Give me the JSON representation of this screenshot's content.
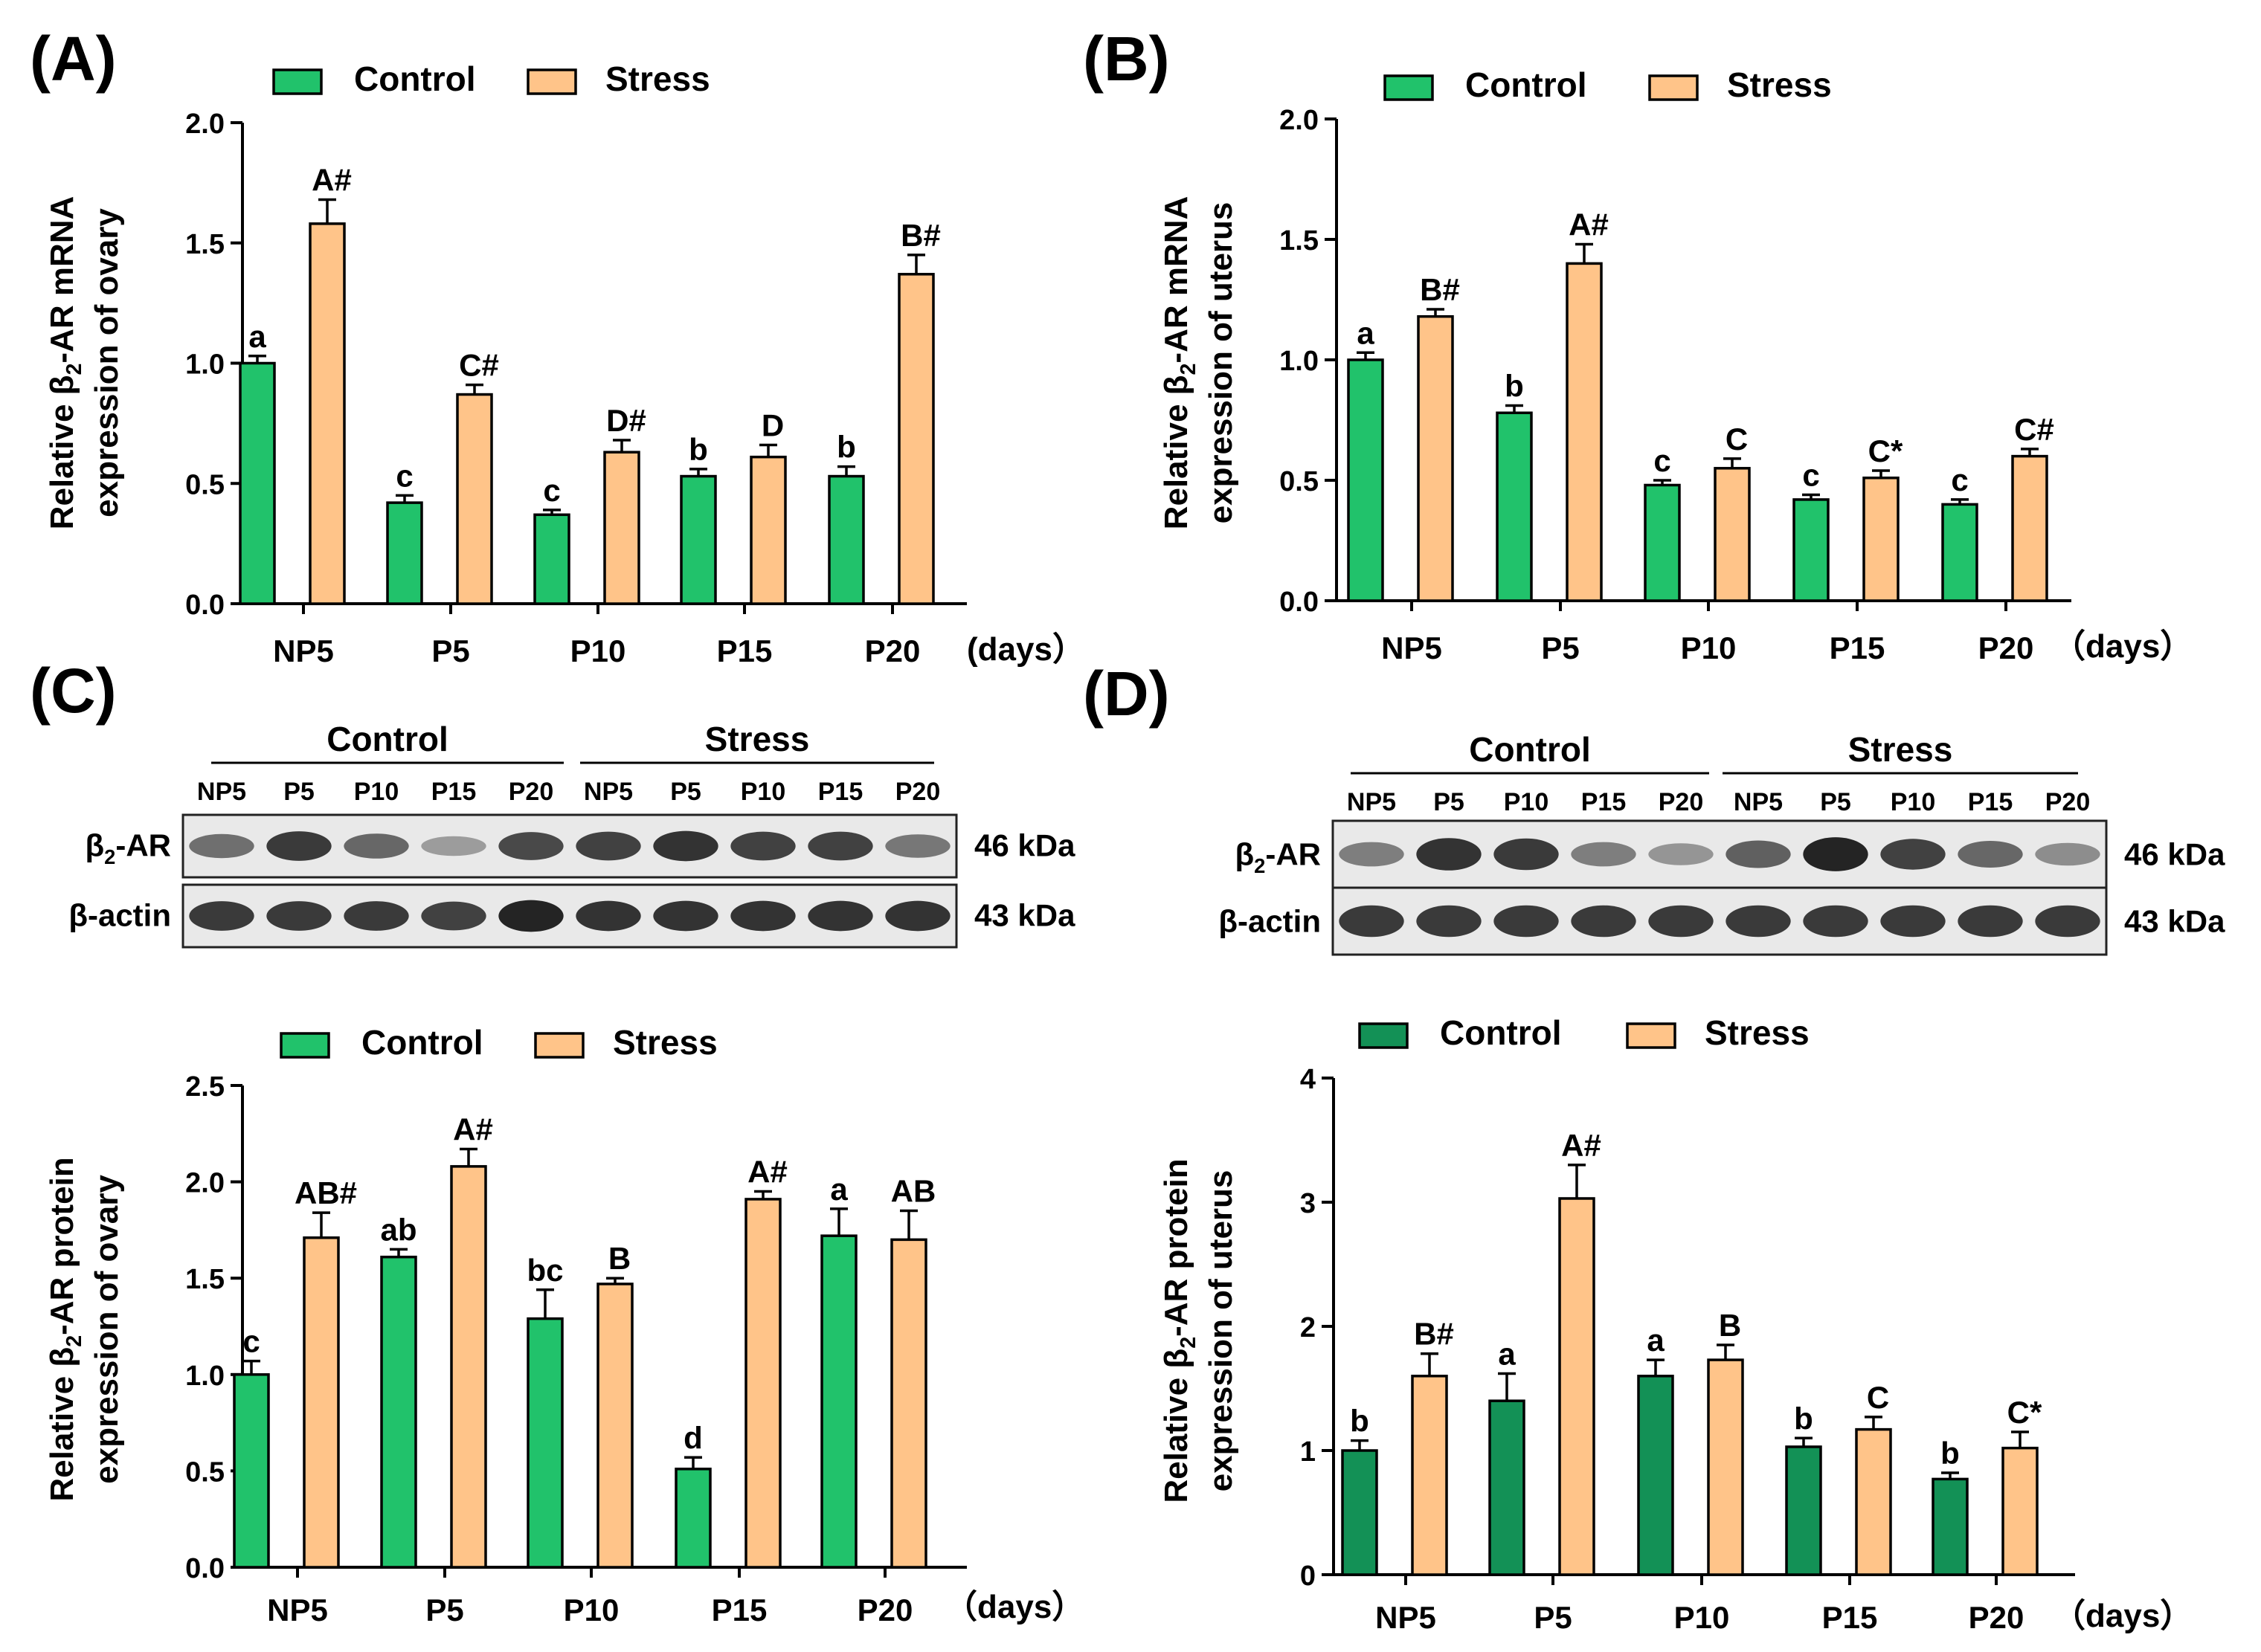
{
  "figure": {
    "panel_labels": [
      "(A)",
      "(B)",
      "(C)",
      "(D)"
    ],
    "days_label": "(days）",
    "days_label_b": "（days）",
    "days_label_c": "（days）",
    "days_label_d": "（days）"
  },
  "colors": {
    "control_a": "#21c26b",
    "control_d": "#139156",
    "stress": "#ffc489",
    "axis": "#000000"
  },
  "western_c": {
    "group_labels": [
      "Control",
      "Stress"
    ],
    "lanes": [
      "NP5",
      "P5",
      "P10",
      "P15",
      "P20",
      "NP5",
      "P5",
      "P10",
      "P15",
      "P20"
    ],
    "rows": [
      {
        "label": "β2-AR",
        "kda": "46 kDa"
      },
      {
        "label": "β-actin",
        "kda": "43 kDa"
      }
    ]
  },
  "western_d": {
    "group_labels": [
      "Control",
      "Stress"
    ],
    "lanes": [
      "NP5",
      "P5",
      "P10",
      "P15",
      "P20",
      "NP5",
      "P5",
      "P10",
      "P15",
      "P20"
    ],
    "rows": [
      {
        "label": "β2-AR",
        "kda": "46 kDa"
      },
      {
        "label": "β-actin",
        "kda": "43 kDa"
      }
    ]
  },
  "chart_data": [
    {
      "panel": "A",
      "type": "bar",
      "categories": [
        "NP5",
        "P5",
        "P10",
        "P15",
        "P20"
      ],
      "series": [
        {
          "name": "Control",
          "values": [
            1.0,
            0.42,
            0.37,
            0.53,
            0.53
          ],
          "errors": [
            0.03,
            0.03,
            0.02,
            0.03,
            0.04
          ],
          "labels": [
            "a",
            "c",
            "c",
            "b",
            "b"
          ]
        },
        {
          "name": "Stress",
          "values": [
            1.58,
            0.87,
            0.63,
            0.61,
            1.37
          ],
          "errors": [
            0.1,
            0.04,
            0.05,
            0.05,
            0.08
          ],
          "labels": [
            "A#",
            "C#",
            "D#",
            "D",
            "B#"
          ]
        }
      ],
      "ylabel": [
        "Relative β2-AR mRNA",
        "expression of ovary"
      ],
      "ylim": [
        0,
        2.0
      ],
      "yticks": [
        "0.0",
        "0.5",
        "1.0",
        "1.5",
        "2.0"
      ]
    },
    {
      "panel": "B",
      "type": "bar",
      "categories": [
        "NP5",
        "P5",
        "P10",
        "P15",
        "P20"
      ],
      "series": [
        {
          "name": "Control",
          "values": [
            1.0,
            0.78,
            0.48,
            0.42,
            0.4
          ],
          "errors": [
            0.03,
            0.03,
            0.02,
            0.02,
            0.02
          ],
          "labels": [
            "a",
            "b",
            "c",
            "c",
            "c"
          ]
        },
        {
          "name": "Stress",
          "values": [
            1.18,
            1.4,
            0.55,
            0.51,
            0.6
          ],
          "errors": [
            0.03,
            0.08,
            0.04,
            0.03,
            0.03
          ],
          "labels": [
            "B#",
            "A#",
            "C",
            "C*",
            "C#"
          ]
        }
      ],
      "ylabel": [
        "Relative β2-AR mRNA",
        "expression of uterus"
      ],
      "ylim": [
        0,
        2.0
      ],
      "yticks": [
        "0.0",
        "0.5",
        "1.0",
        "1.5",
        "2.0"
      ]
    },
    {
      "panel": "C",
      "type": "bar",
      "categories": [
        "NP5",
        "P5",
        "P10",
        "P15",
        "P20"
      ],
      "series": [
        {
          "name": "Control",
          "values": [
            1.0,
            1.61,
            1.29,
            0.51,
            1.72
          ],
          "errors": [
            0.07,
            0.04,
            0.15,
            0.06,
            0.14
          ],
          "labels": [
            "c",
            "ab",
            "bc",
            "d",
            "a"
          ]
        },
        {
          "name": "Stress",
          "values": [
            1.71,
            2.08,
            1.47,
            1.91,
            1.7
          ],
          "errors": [
            0.13,
            0.09,
            0.03,
            0.04,
            0.15
          ],
          "labels": [
            "AB#",
            "A#",
            "B",
            "A#",
            "AB"
          ]
        }
      ],
      "ylabel": [
        "Relative β2-AR  protein",
        "expression of ovary"
      ],
      "ylim": [
        0,
        2.5
      ],
      "yticks": [
        "0.0",
        "0.5",
        "1.0",
        "1.5",
        "2.0",
        "2.5"
      ]
    },
    {
      "panel": "D",
      "type": "bar",
      "categories": [
        "NP5",
        "P5",
        "P10",
        "P15",
        "P20"
      ],
      "series": [
        {
          "name": "Control",
          "values": [
            1.0,
            1.4,
            1.6,
            1.03,
            0.77
          ],
          "errors": [
            0.08,
            0.22,
            0.13,
            0.07,
            0.05
          ],
          "labels": [
            "b",
            "a",
            "a",
            "b",
            "b"
          ]
        },
        {
          "name": "Stress",
          "values": [
            1.6,
            3.03,
            1.73,
            1.17,
            1.02
          ],
          "errors": [
            0.18,
            0.27,
            0.12,
            0.1,
            0.13
          ],
          "labels": [
            "B#",
            "A#",
            "B",
            "C",
            "C*"
          ]
        }
      ],
      "ylabel": [
        "Relative β2-AR  protein",
        "expression of uterus"
      ],
      "ylim": [
        0,
        4
      ],
      "yticks": [
        "0",
        "1",
        "2",
        "3",
        "4"
      ]
    }
  ]
}
